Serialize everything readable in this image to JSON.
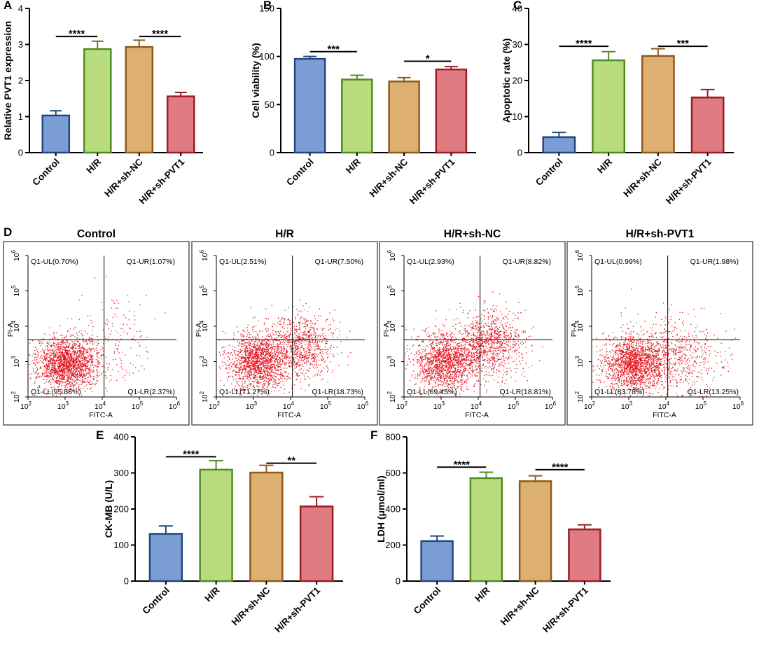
{
  "chart_data": [
    {
      "panel": "A",
      "type": "bar",
      "categories": [
        "Control",
        "H/R",
        "H/R+sh-NC",
        "H/R+sh-PVT1"
      ],
      "values": [
        1.03,
        2.87,
        2.93,
        1.56
      ],
      "errors": [
        0.13,
        0.22,
        0.19,
        0.11
      ],
      "ylabel": "Relative PVT1 expression",
      "ylim": [
        0,
        4
      ],
      "yticks": [
        0,
        1,
        2,
        3,
        4
      ],
      "colors": [
        "#7a9ed4",
        "#b9dd7e",
        "#ddb072",
        "#e07b82"
      ],
      "edge_colors": [
        "#23487f",
        "#4e8c24",
        "#8f5a18",
        "#9a1c29"
      ],
      "significance": [
        {
          "from": 0,
          "to": 1,
          "y": 3.22,
          "label": "****"
        },
        {
          "from": 2,
          "to": 3,
          "y": 3.22,
          "label": "****"
        }
      ]
    },
    {
      "panel": "B",
      "type": "bar",
      "categories": [
        "Control",
        "H/R",
        "H/R+sh-NC",
        "H/R+sh-PVT1"
      ],
      "values": [
        97.5,
        76,
        74,
        86.5
      ],
      "errors": [
        2.5,
        4.5,
        4,
        3
      ],
      "ylabel": "Cell viability (%)",
      "ylim": [
        0,
        150
      ],
      "yticks": [
        0,
        50,
        100,
        150
      ],
      "colors": [
        "#7a9ed4",
        "#b9dd7e",
        "#ddb072",
        "#e07b82"
      ],
      "edge_colors": [
        "#23487f",
        "#4e8c24",
        "#8f5a18",
        "#9a1c29"
      ],
      "significance": [
        {
          "from": 0,
          "to": 1,
          "y": 105,
          "label": "***"
        },
        {
          "from": 2,
          "to": 3,
          "y": 95,
          "label": "*"
        }
      ]
    },
    {
      "panel": "C",
      "type": "bar",
      "categories": [
        "Control",
        "H/R",
        "H/R+sh-NC",
        "H/R+sh-PVT1"
      ],
      "values": [
        4.3,
        25.6,
        26.8,
        15.3
      ],
      "errors": [
        1.3,
        2.4,
        2,
        2.2
      ],
      "ylabel": "Apoptotic rate (%)",
      "ylim": [
        0,
        40
      ],
      "yticks": [
        0,
        10,
        20,
        30,
        40
      ],
      "colors": [
        "#7a9ed4",
        "#b9dd7e",
        "#ddb072",
        "#e07b82"
      ],
      "edge_colors": [
        "#23487f",
        "#4e8c24",
        "#8f5a18",
        "#9a1c29"
      ],
      "significance": [
        {
          "from": 1,
          "to": 0,
          "y": 29.5,
          "label": "****"
        },
        {
          "from": 2,
          "to": 3,
          "y": 29.5,
          "label": "***"
        }
      ]
    },
    {
      "panel": "E",
      "type": "bar",
      "categories": [
        "Control",
        "H/R",
        "H/R+sh-NC",
        "H/R+sh-PVT1"
      ],
      "values": [
        131,
        309,
        301,
        207
      ],
      "errors": [
        22,
        25,
        20,
        27
      ],
      "ylabel": "CK-MB (U/L)",
      "ylim": [
        0,
        400
      ],
      "yticks": [
        0,
        100,
        200,
        300,
        400
      ],
      "colors": [
        "#7a9ed4",
        "#b9dd7e",
        "#ddb072",
        "#e07b82"
      ],
      "edge_colors": [
        "#23487f",
        "#4e8c24",
        "#8f5a18",
        "#9a1c29"
      ],
      "significance": [
        {
          "from": 0,
          "to": 1,
          "y": 345,
          "label": "****"
        },
        {
          "from": 2,
          "to": 3,
          "y": 327,
          "label": "**"
        }
      ]
    },
    {
      "panel": "F",
      "type": "bar",
      "categories": [
        "Control",
        "H/R",
        "H/R+sh-NC",
        "H/R+sh-PVT1"
      ],
      "values": [
        222,
        571,
        554,
        287
      ],
      "errors": [
        28,
        33,
        30,
        25
      ],
      "ylabel": "LDH (μmol/ml)",
      "ylim": [
        0,
        800
      ],
      "yticks": [
        0,
        200,
        400,
        600,
        800
      ],
      "colors": [
        "#7a9ed4",
        "#b9dd7e",
        "#ddb072",
        "#e07b82"
      ],
      "edge_colors": [
        "#23487f",
        "#4e8c24",
        "#8f5a18",
        "#9a1c29"
      ],
      "significance": [
        {
          "from": 0,
          "to": 1,
          "y": 632,
          "label": "****"
        },
        {
          "from": 2,
          "to": 3,
          "y": 618,
          "label": "****"
        }
      ]
    },
    {
      "panel": "D",
      "type": "scatter",
      "xlabel": "FITC-A",
      "ylabel": "PI-A",
      "x_log_range": [
        2,
        6
      ],
      "y_log_range": [
        2,
        6
      ],
      "tick_exponents": [
        "2",
        "3",
        "4",
        "5",
        "6"
      ],
      "gate_x_log": 4.05,
      "gate_y_log": 3.62,
      "point_color": "#e3141e",
      "plots": [
        {
          "title": "Control",
          "UL": "Q1-UL(0.70%)",
          "UR": "Q1-UR(1.07%)",
          "LL": "Q1-LL(95.86%)",
          "LR": "Q1-LR(2.37%)",
          "main_cluster": {
            "x": 3.05,
            "y": 2.95,
            "sx": 0.42,
            "sy": 0.36,
            "n": 1900
          },
          "secondary_cluster": {
            "x": 4.4,
            "y": 3.6,
            "sx": 0.55,
            "sy": 0.7,
            "n": 160
          }
        },
        {
          "title": "H/R",
          "UL": "Q1-UL(2.51%)",
          "UR": "Q1-UR(7.50%)",
          "LL": "Q1-LL(71.27%)",
          "LR": "Q1-LR(18.73%)",
          "main_cluster": {
            "x": 3.1,
            "y": 3.0,
            "sx": 0.4,
            "sy": 0.4,
            "n": 1500
          },
          "secondary_cluster": {
            "x": 4.25,
            "y": 3.45,
            "sx": 0.45,
            "sy": 0.45,
            "n": 900
          }
        },
        {
          "title": "H/R+sh-NC",
          "UL": "Q1-UL(2.93%)",
          "UR": "Q1-UR(8.82%)",
          "LL": "Q1-LL(69.45%)",
          "LR": "Q1-LR(18.81%)",
          "main_cluster": {
            "x": 3.1,
            "y": 3.0,
            "sx": 0.42,
            "sy": 0.4,
            "n": 1500
          },
          "secondary_cluster": {
            "x": 4.3,
            "y": 3.5,
            "sx": 0.45,
            "sy": 0.48,
            "n": 950
          }
        },
        {
          "title": "H/R+sh-PVT1",
          "UL": "Q1-UL(0.99%)",
          "UR": "Q1-UR(1.98%)",
          "LL": "Q1-LL(83.78%)",
          "LR": "Q1-LR(13.25%)",
          "main_cluster": {
            "x": 3.15,
            "y": 2.95,
            "sx": 0.4,
            "sy": 0.38,
            "n": 1700
          },
          "secondary_cluster": {
            "x": 4.3,
            "y": 3.2,
            "sx": 0.6,
            "sy": 0.55,
            "n": 600
          }
        }
      ]
    }
  ]
}
